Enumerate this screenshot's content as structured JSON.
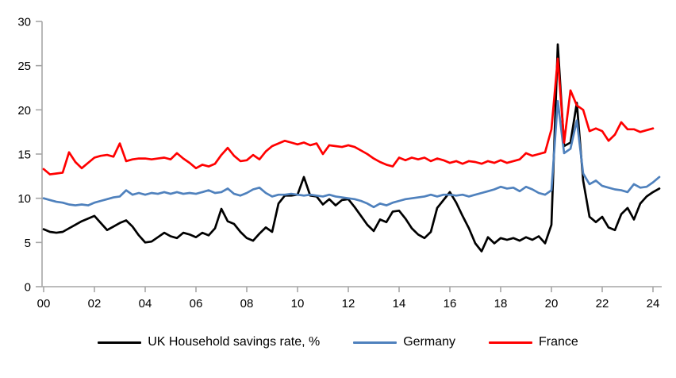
{
  "page": {
    "background": "#FFFFFF",
    "description": "Line chart of household savings rates for UK, Germany and France, quarterly 2000-2024"
  },
  "chart_data": {
    "type": "line",
    "title": "",
    "xlabel": "",
    "ylabel": "",
    "x_start_year": 2000,
    "points_per_year": 4,
    "ylim": [
      0,
      30
    ],
    "y_ticks": [
      0,
      5,
      10,
      15,
      20,
      25,
      30
    ],
    "x_tick_labels": [
      "00",
      "02",
      "04",
      "06",
      "08",
      "10",
      "12",
      "14",
      "16",
      "18",
      "20",
      "22",
      "24"
    ],
    "grid": false,
    "axis_color": "#A6A6A6",
    "tick_label_color": "#000000",
    "legend_position": "bottom",
    "series": [
      {
        "name": "UK Household savings rate, %",
        "color": "#000000",
        "values": [
          6.5,
          6.2,
          6.1,
          6.2,
          6.6,
          7.0,
          7.4,
          7.7,
          8.0,
          7.2,
          6.4,
          6.8,
          7.2,
          7.5,
          6.8,
          5.8,
          5.0,
          5.1,
          5.6,
          6.1,
          5.7,
          5.5,
          6.1,
          5.9,
          5.6,
          6.1,
          5.8,
          6.6,
          8.8,
          7.4,
          7.1,
          6.2,
          5.5,
          5.2,
          6.0,
          6.7,
          6.2,
          9.4,
          10.3,
          10.3,
          10.4,
          12.4,
          10.3,
          10.2,
          9.3,
          9.9,
          9.2,
          9.8,
          9.9,
          9.0,
          8.0,
          7.0,
          6.3,
          7.6,
          7.3,
          8.5,
          8.6,
          7.7,
          6.6,
          5.9,
          5.5,
          6.2,
          8.9,
          9.8,
          10.7,
          9.5,
          8.0,
          6.6,
          4.9,
          4.0,
          5.6,
          4.9,
          5.5,
          5.3,
          5.5,
          5.2,
          5.6,
          5.3,
          5.7,
          4.9,
          7.0,
          27.4,
          15.9,
          16.3,
          20.8,
          12.0,
          7.9,
          7.3,
          7.9,
          6.7,
          6.4,
          8.2,
          8.9,
          7.6,
          9.4,
          10.2,
          10.7,
          11.1
        ]
      },
      {
        "name": "Germany",
        "color": "#4F81BD",
        "values": [
          10.0,
          9.8,
          9.6,
          9.5,
          9.3,
          9.2,
          9.3,
          9.2,
          9.5,
          9.7,
          9.9,
          10.1,
          10.2,
          10.9,
          10.4,
          10.6,
          10.4,
          10.6,
          10.5,
          10.7,
          10.5,
          10.7,
          10.5,
          10.6,
          10.5,
          10.7,
          10.9,
          10.6,
          10.7,
          11.1,
          10.5,
          10.3,
          10.6,
          11.0,
          11.2,
          10.6,
          10.2,
          10.4,
          10.4,
          10.5,
          10.4,
          10.3,
          10.4,
          10.3,
          10.2,
          10.4,
          10.2,
          10.1,
          10.0,
          9.9,
          9.7,
          9.4,
          9.0,
          9.4,
          9.2,
          9.5,
          9.7,
          9.9,
          10.0,
          10.1,
          10.2,
          10.4,
          10.2,
          10.4,
          10.4,
          10.3,
          10.4,
          10.2,
          10.4,
          10.6,
          10.8,
          11.0,
          11.3,
          11.1,
          11.2,
          10.8,
          11.3,
          11.0,
          10.6,
          10.4,
          10.9,
          21.0,
          15.1,
          15.6,
          18.8,
          12.8,
          11.6,
          12.0,
          11.4,
          11.2,
          11.0,
          10.9,
          10.7,
          11.6,
          11.2,
          11.3,
          11.8,
          12.4
        ]
      },
      {
        "name": "France",
        "color": "#FF0000",
        "values": [
          13.3,
          12.7,
          12.8,
          12.9,
          15.2,
          14.1,
          13.4,
          14.0,
          14.6,
          14.8,
          14.9,
          14.7,
          16.2,
          14.2,
          14.4,
          14.5,
          14.5,
          14.4,
          14.5,
          14.6,
          14.4,
          15.1,
          14.5,
          14.0,
          13.4,
          13.8,
          13.6,
          13.9,
          14.9,
          15.7,
          14.8,
          14.2,
          14.3,
          14.9,
          14.4,
          15.3,
          15.9,
          16.2,
          16.5,
          16.3,
          16.1,
          16.3,
          16.0,
          16.2,
          15.0,
          16.0,
          15.9,
          15.8,
          16.0,
          15.8,
          15.4,
          15.0,
          14.5,
          14.1,
          13.8,
          13.6,
          14.6,
          14.3,
          14.6,
          14.4,
          14.6,
          14.2,
          14.5,
          14.3,
          14.0,
          14.2,
          13.9,
          14.2,
          14.1,
          13.9,
          14.2,
          14.0,
          14.3,
          14.0,
          14.2,
          14.4,
          15.1,
          14.8,
          15.0,
          15.2,
          17.8,
          25.8,
          16.3,
          22.2,
          20.5,
          20.0,
          17.6,
          17.9,
          17.6,
          16.5,
          17.2,
          18.6,
          17.8,
          17.8,
          17.5,
          17.7,
          17.9
        ]
      }
    ]
  },
  "legend": {
    "items": [
      {
        "label": "UK Household savings rate, %"
      },
      {
        "label": "Germany"
      },
      {
        "label": "France"
      }
    ]
  }
}
